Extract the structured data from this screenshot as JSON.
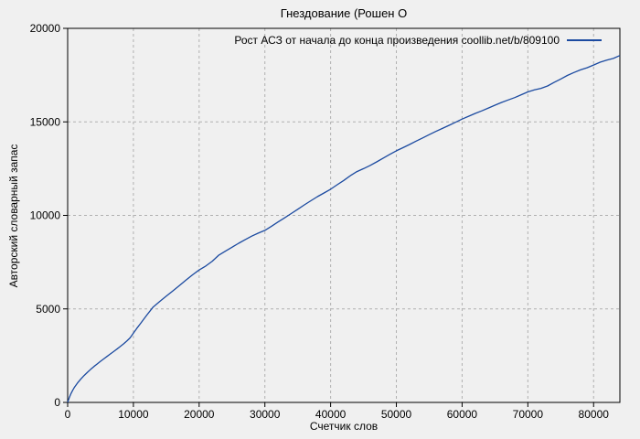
{
  "window": {
    "background_color": "#f0f0f0"
  },
  "chart_data": {
    "type": "line",
    "title": "Гнездование (Рошен О",
    "xlabel": "Счетчик слов",
    "ylabel": "Авторский словарный запас",
    "xlim": [
      0,
      84000
    ],
    "ylim": [
      0,
      20000
    ],
    "xticks": [
      0,
      10000,
      20000,
      30000,
      40000,
      50000,
      60000,
      70000,
      80000
    ],
    "yticks": [
      0,
      5000,
      10000,
      15000,
      20000
    ],
    "grid": true,
    "grid_style": "dashed",
    "grid_color": "#b0b0b0",
    "axis_color": "#000000",
    "legend": {
      "position": "top-right-inside",
      "entries": [
        {
          "label": "Рост АСЗ от начала до конца произведения coollib.net/b/809100",
          "color": "#1b4aa0"
        }
      ]
    },
    "series": [
      {
        "name": "Рост АСЗ от начала до конца произведения coollib.net/b/809100",
        "color": "#1b4aa0",
        "points": [
          [
            0,
            0
          ],
          [
            250,
            260
          ],
          [
            500,
            470
          ],
          [
            750,
            640
          ],
          [
            1000,
            790
          ],
          [
            1500,
            1040
          ],
          [
            2000,
            1250
          ],
          [
            2500,
            1440
          ],
          [
            3000,
            1610
          ],
          [
            3500,
            1770
          ],
          [
            4000,
            1920
          ],
          [
            4500,
            2060
          ],
          [
            5000,
            2200
          ],
          [
            5500,
            2330
          ],
          [
            6000,
            2460
          ],
          [
            6500,
            2590
          ],
          [
            7000,
            2720
          ],
          [
            7500,
            2850
          ],
          [
            8000,
            2990
          ],
          [
            8500,
            3130
          ],
          [
            9000,
            3280
          ],
          [
            9500,
            3450
          ],
          [
            10000,
            3700
          ],
          [
            10500,
            3950
          ],
          [
            11000,
            4180
          ],
          [
            12000,
            4650
          ],
          [
            13000,
            5100
          ],
          [
            14000,
            5400
          ],
          [
            15000,
            5680
          ],
          [
            16000,
            5960
          ],
          [
            17000,
            6250
          ],
          [
            18000,
            6540
          ],
          [
            19000,
            6820
          ],
          [
            20000,
            7080
          ],
          [
            21000,
            7290
          ],
          [
            22000,
            7550
          ],
          [
            23000,
            7880
          ],
          [
            24000,
            8090
          ],
          [
            25000,
            8300
          ],
          [
            26000,
            8510
          ],
          [
            27000,
            8700
          ],
          [
            28000,
            8890
          ],
          [
            29000,
            9050
          ],
          [
            30000,
            9200
          ],
          [
            31000,
            9420
          ],
          [
            32000,
            9650
          ],
          [
            33000,
            9870
          ],
          [
            34000,
            10100
          ],
          [
            35000,
            10330
          ],
          [
            36000,
            10560
          ],
          [
            37000,
            10780
          ],
          [
            38000,
            11000
          ],
          [
            39000,
            11200
          ],
          [
            40000,
            11400
          ],
          [
            41000,
            11640
          ],
          [
            42000,
            11870
          ],
          [
            43000,
            12120
          ],
          [
            44000,
            12340
          ],
          [
            45000,
            12500
          ],
          [
            46000,
            12670
          ],
          [
            47000,
            12860
          ],
          [
            48000,
            13060
          ],
          [
            49000,
            13260
          ],
          [
            50000,
            13450
          ],
          [
            51000,
            13620
          ],
          [
            52000,
            13790
          ],
          [
            53000,
            13970
          ],
          [
            54000,
            14140
          ],
          [
            55000,
            14320
          ],
          [
            56000,
            14490
          ],
          [
            57000,
            14650
          ],
          [
            58000,
            14810
          ],
          [
            59000,
            14980
          ],
          [
            60000,
            15150
          ],
          [
            61000,
            15300
          ],
          [
            62000,
            15450
          ],
          [
            63000,
            15590
          ],
          [
            64000,
            15740
          ],
          [
            65000,
            15890
          ],
          [
            66000,
            16040
          ],
          [
            67000,
            16170
          ],
          [
            68000,
            16300
          ],
          [
            69000,
            16450
          ],
          [
            70000,
            16600
          ],
          [
            71000,
            16710
          ],
          [
            72000,
            16790
          ],
          [
            73000,
            16920
          ],
          [
            74000,
            17110
          ],
          [
            75000,
            17290
          ],
          [
            76000,
            17480
          ],
          [
            77000,
            17640
          ],
          [
            78000,
            17780
          ],
          [
            79000,
            17890
          ],
          [
            80000,
            18040
          ],
          [
            81000,
            18190
          ],
          [
            82000,
            18300
          ],
          [
            83000,
            18390
          ],
          [
            84000,
            18550
          ]
        ]
      }
    ]
  }
}
